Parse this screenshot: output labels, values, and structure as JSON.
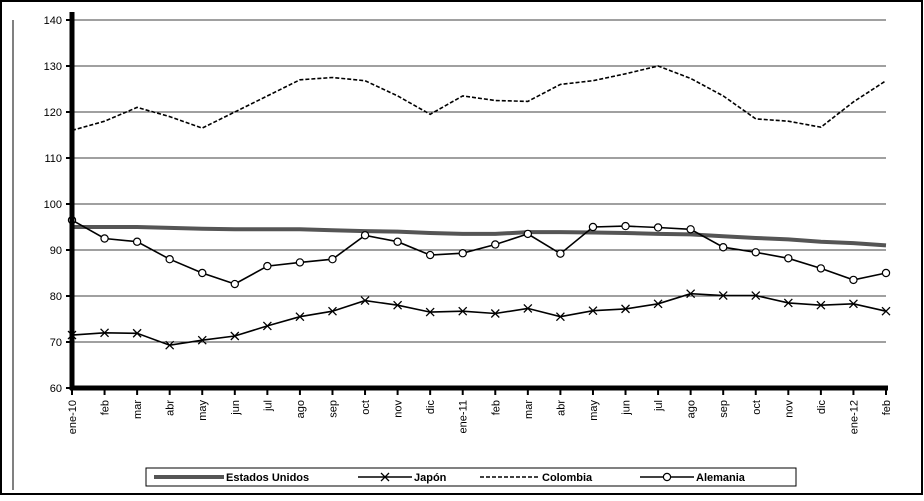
{
  "chart_data": {
    "type": "line",
    "categories": [
      "ene-10",
      "feb",
      "mar",
      "abr",
      "may",
      "jun",
      "jul",
      "ago",
      "sep",
      "oct",
      "nov",
      "dic",
      "ene-11",
      "feb",
      "mar",
      "abr",
      "may",
      "jun",
      "jul",
      "ago",
      "sep",
      "oct",
      "nov",
      "dic",
      "ene-12",
      "feb"
    ],
    "ylim": [
      60,
      140
    ],
    "yticks": [
      "60",
      "70",
      "80",
      "90",
      "100",
      "110",
      "120",
      "130",
      "140"
    ],
    "grid": true,
    "legend_position": "bottom",
    "series": [
      {
        "name": "Estados Unidos",
        "color": "#555555",
        "style": "thick",
        "values": [
          95,
          95,
          95,
          94.8,
          94.6,
          94.5,
          94.5,
          94.5,
          94.3,
          94.1,
          94,
          93.7,
          93.5,
          93.5,
          93.9,
          93.9,
          93.8,
          93.7,
          93.5,
          93.4,
          93,
          92.6,
          92.3,
          91.8,
          91.5,
          91
        ]
      },
      {
        "name": "Japón",
        "color": "#000000",
        "style": "x",
        "values": [
          71.5,
          72,
          71.9,
          69.3,
          70.4,
          71.3,
          73.5,
          75.5,
          76.7,
          79,
          78,
          76.5,
          76.7,
          76.2,
          77.3,
          75.5,
          76.8,
          77.2,
          78.3,
          80.5,
          80.1,
          80.1,
          78.5,
          78,
          78.3,
          76.7
        ]
      },
      {
        "name": "Colombia",
        "color": "#000000",
        "style": "dashed",
        "values": [
          116,
          118,
          121,
          119,
          116.5,
          120,
          123.5,
          127,
          127.5,
          126.8,
          123.5,
          119.5,
          123.5,
          122.5,
          122.3,
          126,
          126.8,
          128.3,
          130,
          127.3,
          123.5,
          118.5,
          118,
          116.7,
          122.2,
          126.8
        ]
      },
      {
        "name": "Alemania",
        "color": "#000000",
        "style": "circle",
        "values": [
          96.5,
          92.5,
          91.8,
          88,
          85,
          82.6,
          86.5,
          87.3,
          88,
          93.2,
          91.8,
          88.9,
          89.3,
          91.2,
          93.5,
          89.2,
          95,
          95.2,
          94.9,
          94.5,
          90.6,
          89.5,
          88.2,
          86,
          83.5,
          85
        ]
      }
    ]
  }
}
